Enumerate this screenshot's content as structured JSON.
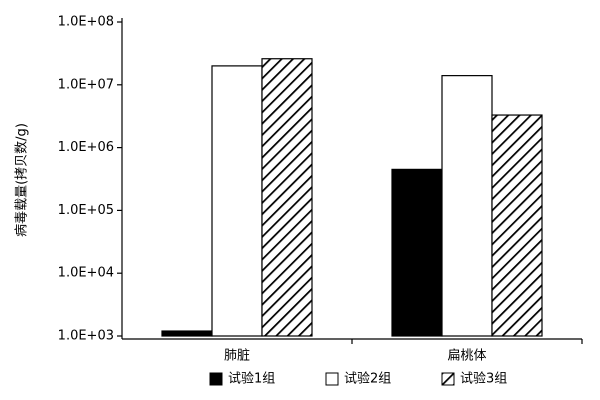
{
  "chart_data": {
    "type": "bar",
    "ylabel": "病毒载量(拷贝数/g)",
    "log_scale": true,
    "categories": [
      "肺脏",
      "扁桃体"
    ],
    "series": [
      {
        "name": "试验1组",
        "color": "#000000",
        "values": [
          1200,
          450000
        ]
      },
      {
        "name": "试验2组",
        "color": "#ffffff",
        "values": [
          20000000,
          14000000
        ]
      },
      {
        "name": "试验3组",
        "color": "#ffffff",
        "hatch": true,
        "values": [
          26000000,
          3300000
        ]
      }
    ],
    "ylim": [
      1000,
      100000000
    ],
    "yticks": [
      {
        "value": 1000,
        "label": "1.0E+03"
      },
      {
        "value": 10000,
        "label": "1.0E+04"
      },
      {
        "value": 100000,
        "label": "1.0E+05"
      },
      {
        "value": 1000000,
        "label": "1.0E+06"
      },
      {
        "value": 10000000,
        "label": "1.0E+07"
      },
      {
        "value": 100000000,
        "label": "1.0E+08"
      }
    ],
    "legend": "bottom"
  }
}
